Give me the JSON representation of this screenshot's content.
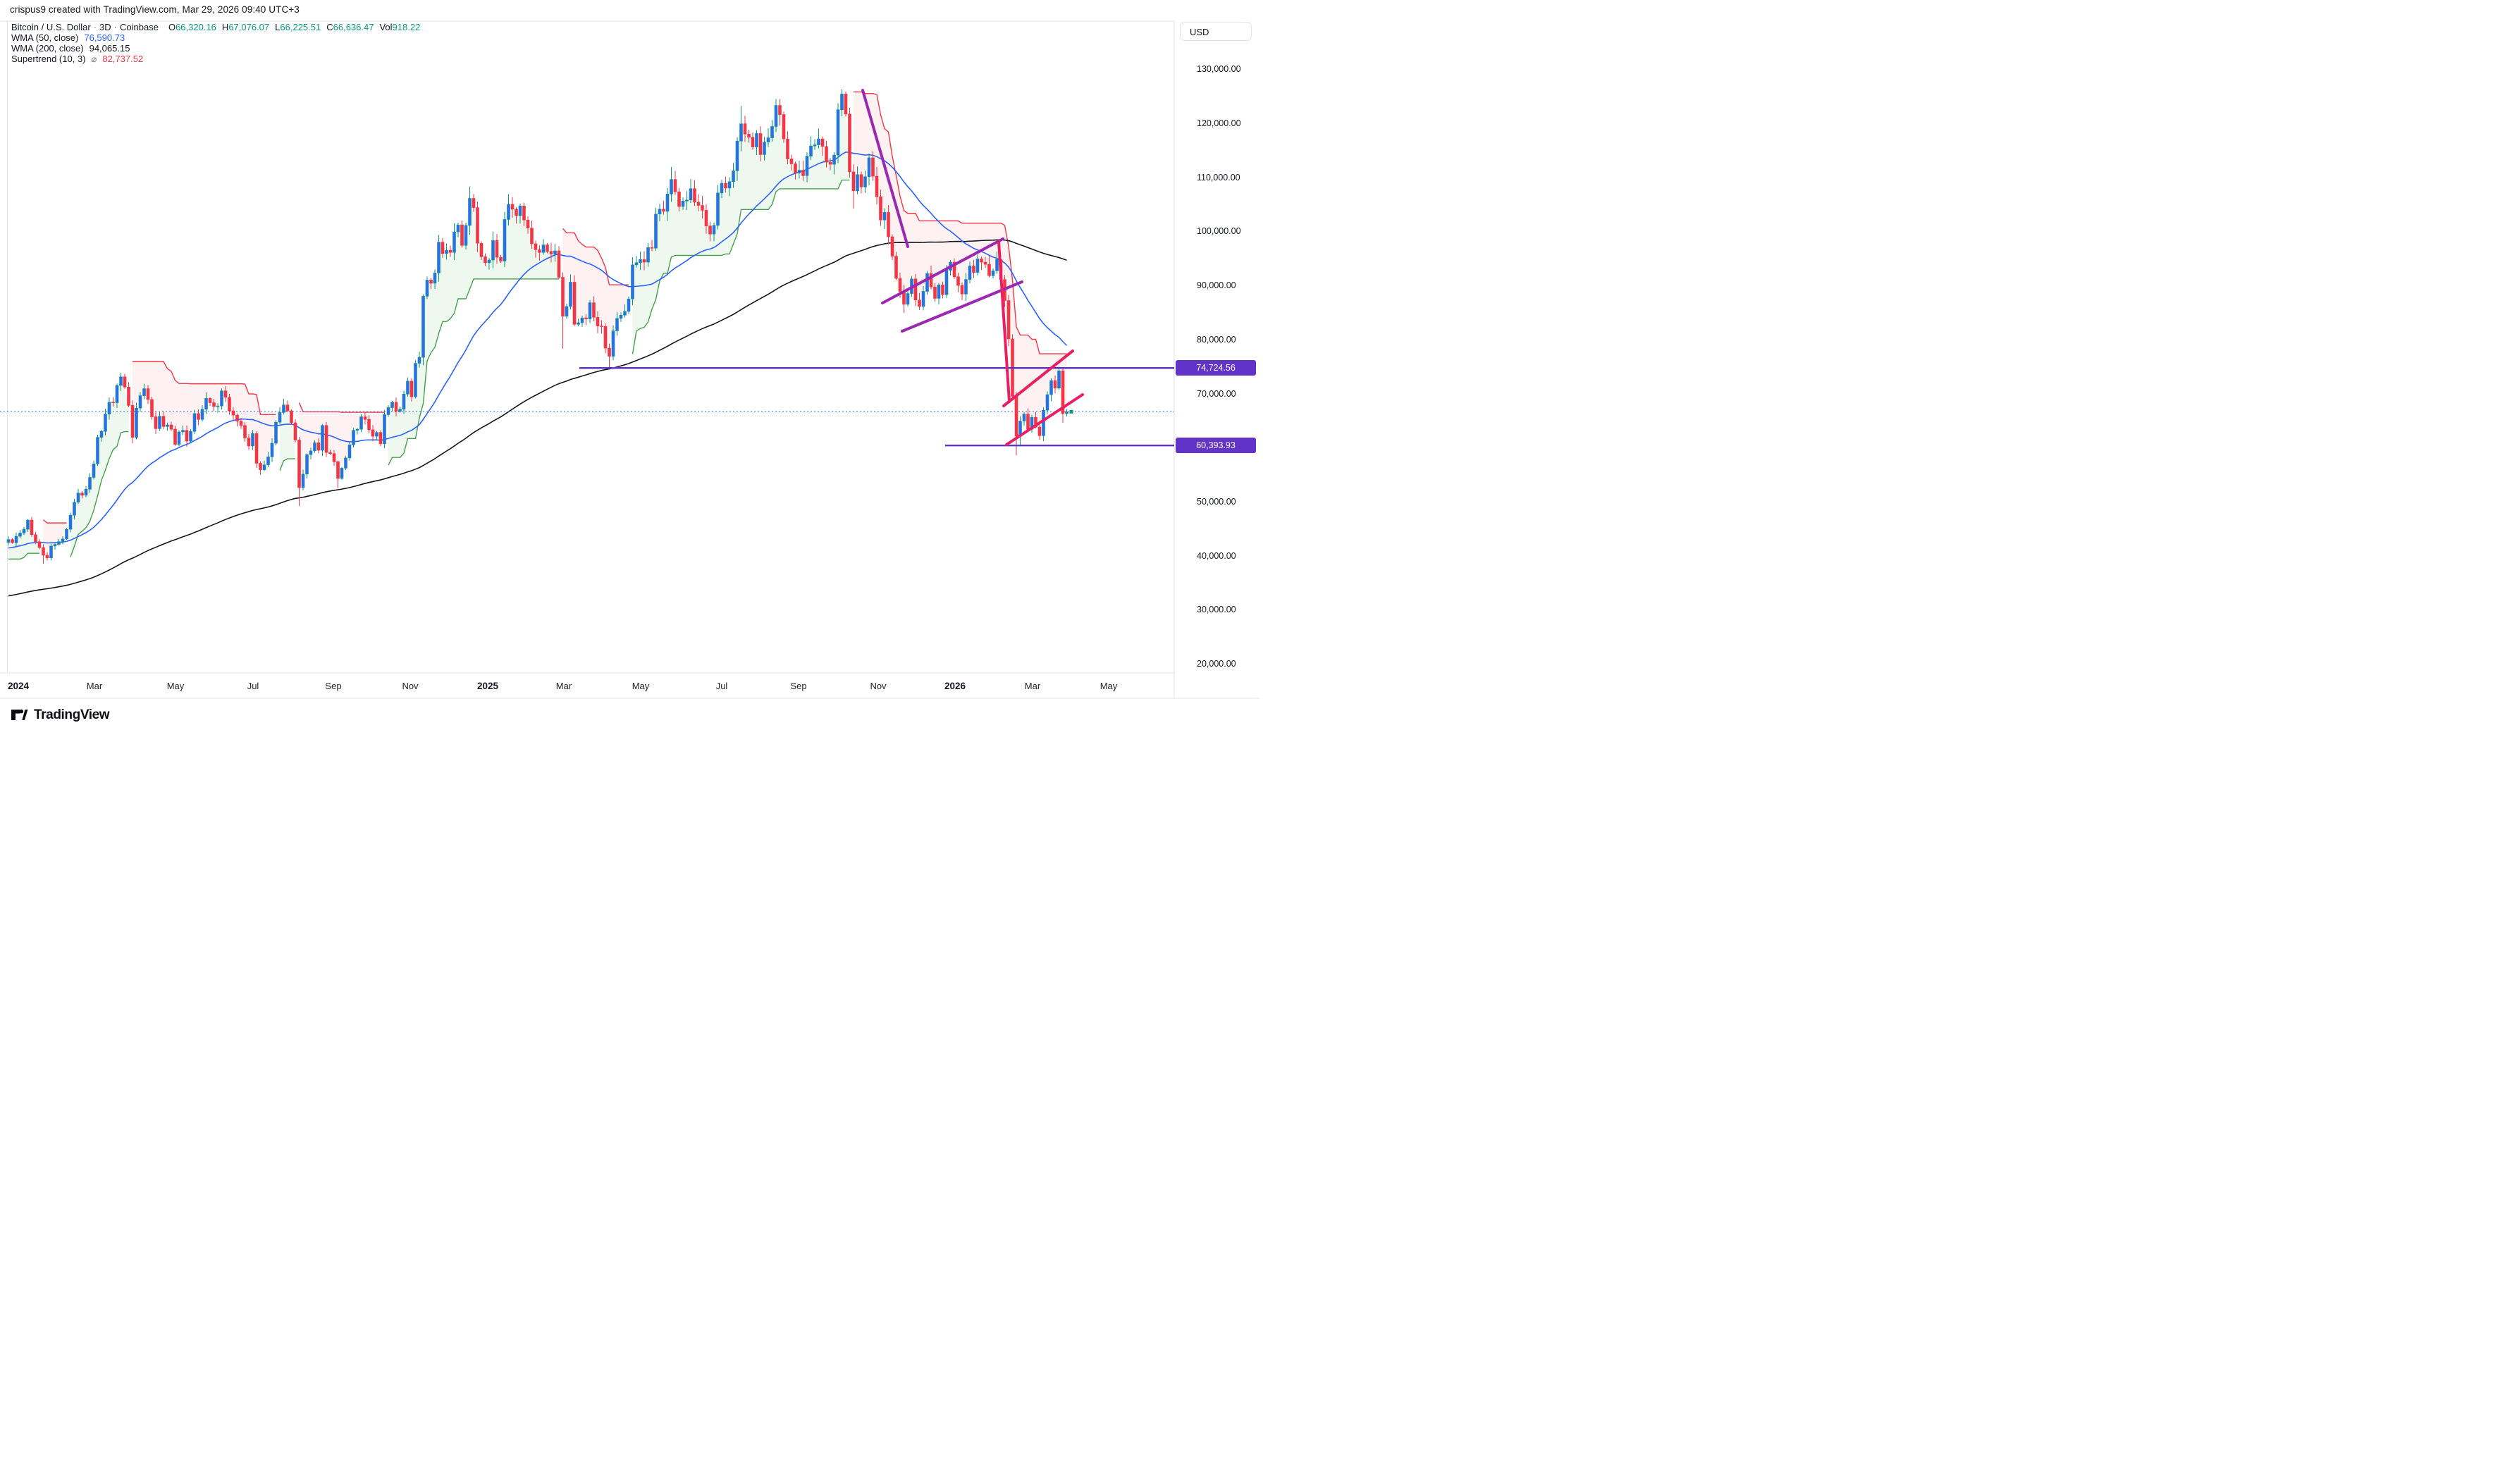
{
  "header": {
    "credit": "crispus9 created with TradingView.com, Mar 29, 2026 09:40 UTC+3"
  },
  "legend": {
    "series_line": {
      "symbol": "Bitcoin / U.S. Dollar",
      "interval": "3D",
      "exchange": "Coinbase",
      "items": [
        {
          "k": "O",
          "v": "66,320.16"
        },
        {
          "k": "H",
          "v": "67,076.07"
        },
        {
          "k": "L",
          "v": "66,225.51"
        },
        {
          "k": "C",
          "v": "66,636.47"
        },
        {
          "k": "Vol",
          "v": "918.22"
        }
      ]
    },
    "wma50": {
      "label": "WMA (50, close)",
      "value": "76,590.73"
    },
    "wma200": {
      "label": "WMA (200, close)",
      "value": "94,065.15"
    },
    "supertrend": {
      "label": "Supertrend (10, 3)",
      "sign": "⌀",
      "value": "82,737.52"
    }
  },
  "axis_right": {
    "currency": "USD",
    "ticks": [
      {
        "text": "130,000.00",
        "price_k": 130
      },
      {
        "text": "120,000.00",
        "price_k": 120
      },
      {
        "text": "110,000.00",
        "price_k": 110
      },
      {
        "text": "100,000.00",
        "price_k": 100
      },
      {
        "text": "90,000.00",
        "price_k": 90
      },
      {
        "text": "80,000.00",
        "price_k": 80
      },
      {
        "text": "70,000.00",
        "price_k": 70
      },
      {
        "text": "60,000.00",
        "price_k": 60
      },
      {
        "text": "50,000.00",
        "price_k": 50
      },
      {
        "text": "40,000.00",
        "price_k": 40
      },
      {
        "text": "30,000.00",
        "price_k": 30
      },
      {
        "text": "20,000.00",
        "price_k": 20
      }
    ],
    "price_labels": [
      {
        "text": "74,724.56",
        "price_k": 74.72456
      },
      {
        "text": "60,393.93",
        "price_k": 60.39393
      }
    ]
  },
  "axis_time": {
    "labels": [
      {
        "text": "2024",
        "x": 26,
        "bold": true
      },
      {
        "text": "Mar",
        "x": 134,
        "bold": false
      },
      {
        "text": "May",
        "x": 249,
        "bold": false
      },
      {
        "text": "Jul",
        "x": 359,
        "bold": false
      },
      {
        "text": "Sep",
        "x": 473,
        "bold": false
      },
      {
        "text": "Nov",
        "x": 582,
        "bold": false
      },
      {
        "text": "2025",
        "x": 692,
        "bold": true
      },
      {
        "text": "Mar",
        "x": 800,
        "bold": false
      },
      {
        "text": "May",
        "x": 909,
        "bold": false
      },
      {
        "text": "Jul",
        "x": 1024,
        "bold": false
      },
      {
        "text": "Sep",
        "x": 1133,
        "bold": false
      },
      {
        "text": "Nov",
        "x": 1246,
        "bold": false
      },
      {
        "text": "2026",
        "x": 1355,
        "bold": true
      },
      {
        "text": "Mar",
        "x": 1465,
        "bold": false
      },
      {
        "text": "May",
        "x": 1573,
        "bold": false
      }
    ]
  },
  "logo": {
    "text": "TradingView"
  },
  "chart_data": {
    "type": "candlestick",
    "title": "Bitcoin / U.S. Dollar",
    "timeframe": "3D",
    "exchange": "Coinbase",
    "last_bar_date": "Mar 29, 2026",
    "ohlc_last": {
      "o": 66320.16,
      "h": 67076.07,
      "l": 66225.51,
      "c": 66636.47,
      "vol": 918.22
    },
    "ylim_k": [
      18,
      134
    ],
    "x_range": "Dec 2023 - Mar 2026, one candle = 3 days",
    "closes_k": [
      43.0,
      42.4,
      43.6,
      44.2,
      44.9,
      46.6,
      43.9,
      42.6,
      41.5,
      40.1,
      39.6,
      41.8,
      42.1,
      42.6,
      43.1,
      44.9,
      47.5,
      49.9,
      51.6,
      51.2,
      52.3,
      54.5,
      57.0,
      61.9,
      63.0,
      66.2,
      68.4,
      68.3,
      71.5,
      73.1,
      71.2,
      67.8,
      61.9,
      67.3,
      69.6,
      70.9,
      68.9,
      65.7,
      63.5,
      65.8,
      63.9,
      64.2,
      63.4,
      60.6,
      62.9,
      63.2,
      61.2,
      63.0,
      66.3,
      65.2,
      67.1,
      69.1,
      68.3,
      67.6,
      67.7,
      70.5,
      69.3,
      66.8,
      66.0,
      64.9,
      64.1,
      61.8,
      60.3,
      62.6,
      57.1,
      55.9,
      56.8,
      58.3,
      60.8,
      64.7,
      66.5,
      67.9,
      66.8,
      64.6,
      61.4,
      52.6,
      55.1,
      58.7,
      59.4,
      60.9,
      59.5,
      64.1,
      59.1,
      58.9,
      57.4,
      54.3,
      56.2,
      58.1,
      60.5,
      63.2,
      63.4,
      65.7,
      65.2,
      63.3,
      62.1,
      62.8,
      60.7,
      66.1,
      67.4,
      68.4,
      66.7,
      67.1,
      69.9,
      72.3,
      69.4,
      75.6,
      76.7,
      88.0,
      91.0,
      90.4,
      92.3,
      98.0,
      95.9,
      96.5,
      96.1,
      99.9,
      101.2,
      97.4,
      101.1,
      106.1,
      104.4,
      97.8,
      95.3,
      94.2,
      94.7,
      98.3,
      95.2,
      94.5,
      102.2,
      105.0,
      104.1,
      102.9,
      104.7,
      102.1,
      100.6,
      97.7,
      96.6,
      96.1,
      97.5,
      96.3,
      95.8,
      96.4,
      91.5,
      84.3,
      86.1,
      90.6,
      82.8,
      83.1,
      84.0,
      83.8,
      86.8,
      84.1,
      82.5,
      82.4,
      78.4,
      76.9,
      81.6,
      83.9,
      84.5,
      85.2,
      87.5,
      93.8,
      94.2,
      94.8,
      94.3,
      97.0,
      96.9,
      103.2,
      104.1,
      103.7,
      106.9,
      109.6,
      107.3,
      104.6,
      105.6,
      105.8,
      107.9,
      105.4,
      104.8,
      103.9,
      101.0,
      99.5,
      101.1,
      107.1,
      108.9,
      108.0,
      109.2,
      111.2,
      116.7,
      119.9,
      118.0,
      117.4,
      115.6,
      118.1,
      114.2,
      116.5,
      117.3,
      119.4,
      123.3,
      121.6,
      117.1,
      113.4,
      112.5,
      110.8,
      111.3,
      110.3,
      113.9,
      115.8,
      116.0,
      117.1,
      115.7,
      112.8,
      112.4,
      114.1,
      122.5,
      125.4,
      121.7,
      111.0,
      107.5,
      110.5,
      108.2,
      110.1,
      113.6,
      110.2,
      106.4,
      102.1,
      103.5,
      99.0,
      95.4,
      91.3,
      88.9,
      86.5,
      88.5,
      91.2,
      87.3,
      86.1,
      88.9,
      92.2,
      89.7,
      87.6,
      90.1,
      88.3,
      92.8,
      94.3,
      91.6,
      90.0,
      88.4,
      91.1,
      93.6,
      92.4,
      94.9,
      94.3,
      93.9,
      91.8,
      92.7,
      94.8,
      91.1,
      87.2,
      80.1,
      69.5,
      62.1,
      64.9,
      66.2,
      63.4,
      65.6,
      63.8,
      62.2,
      66.9,
      69.8,
      72.4,
      71.0,
      74.2,
      66.3,
      66.636
    ],
    "wick_overrides": {
      "9": {
        "l": 38.5
      },
      "29": {
        "h": 73.84
      },
      "32": {
        "l": 60.8
      },
      "75": {
        "l": 49.2
      },
      "85": {
        "l": 52.5
      },
      "119": {
        "h": 108.3
      },
      "129": {
        "h": 106.9
      },
      "143": {
        "l": 78.3
      },
      "155": {
        "l": 74.72
      },
      "171": {
        "h": 111.9
      },
      "189": {
        "h": 123.2
      },
      "198": {
        "h": 124.5
      },
      "215": {
        "h": 126.25
      },
      "218": {
        "l": 104.2
      },
      "231": {
        "l": 84.9
      },
      "260": {
        "l": 58.6
      },
      "261": {
        "l": 60.4
      },
      "271": {
        "h": 74.95
      },
      "272": {
        "l": 64.6
      }
    },
    "indicators": [
      {
        "name": "WMA 50 close",
        "value": 76590.73,
        "color": "#2962ff"
      },
      {
        "name": "WMA 200 close",
        "value": 94065.15,
        "color": "#131722"
      },
      {
        "name": "Supertrend 10,3",
        "value": 82737.52,
        "atr_period": 10,
        "multiplier": 3,
        "up_color": "#45a049",
        "down_color": "#f23645"
      }
    ],
    "ma_seed_pre_chart_anchors": [
      [
        -210,
        40
      ],
      [
        -195,
        33
      ],
      [
        -180,
        27
      ],
      [
        -168,
        19.8
      ],
      [
        -160,
        17.0
      ],
      [
        -150,
        16.8
      ],
      [
        -140,
        20.5
      ],
      [
        -130,
        22.5
      ],
      [
        -120,
        27.5
      ],
      [
        -110,
        29.5
      ],
      [
        -100,
        30.2
      ],
      [
        -90,
        29.0
      ],
      [
        -80,
        26.3
      ],
      [
        -70,
        27.2
      ],
      [
        -60,
        27.9
      ],
      [
        -50,
        34.6
      ],
      [
        -40,
        37.0
      ],
      [
        -30,
        37.8
      ],
      [
        -20,
        41.3
      ],
      [
        -10,
        43.8
      ],
      [
        -1,
        43.0
      ]
    ],
    "annotations": {
      "dotted_price_line_k": 66.63647,
      "horizontal_rays": [
        {
          "price_k": 74.72456,
          "label": "74,724.56",
          "x_start": 822
        },
        {
          "price_k": 60.39393,
          "label": "60,393.93",
          "x_start": 1341
        }
      ],
      "trendlines": [
        {
          "name": "downtrend-line",
          "color": "#9c27b0",
          "w": 4,
          "x1": 1224,
          "y1": 128,
          "x2": 1288,
          "y2": 350
        },
        {
          "name": "wedge-upper-line",
          "color": "#9c27b0",
          "w": 4,
          "x1": 1252,
          "y1": 430,
          "x2": 1423,
          "y2": 339
        },
        {
          "name": "wedge-lower-line",
          "color": "#9c27b0",
          "w": 4,
          "x1": 1280,
          "y1": 470,
          "x2": 1450,
          "y2": 400
        },
        {
          "name": "breakdown-line",
          "color": "#e91e63",
          "w": 4,
          "x1": 1417,
          "y1": 343,
          "x2": 1432,
          "y2": 570
        },
        {
          "name": "channel-upper",
          "color": "#e91e63",
          "w": 4,
          "x1": 1424,
          "y1": 576,
          "x2": 1522,
          "y2": 498
        },
        {
          "name": "channel-lower",
          "color": "#e91e63",
          "w": 4,
          "x1": 1428,
          "y1": 631,
          "x2": 1536,
          "y2": 560
        }
      ]
    },
    "colors": {
      "up_body": "#2e6bf0",
      "up_wick": "#089981",
      "down": "#f23645",
      "st_up_fill": "rgba(76,175,80,0.09)",
      "st_down_fill": "rgba(242,54,69,0.07)",
      "ray_violet": "#6133c6",
      "frame": "#e0e3eb",
      "dotted_blue": "#2962ff"
    }
  }
}
